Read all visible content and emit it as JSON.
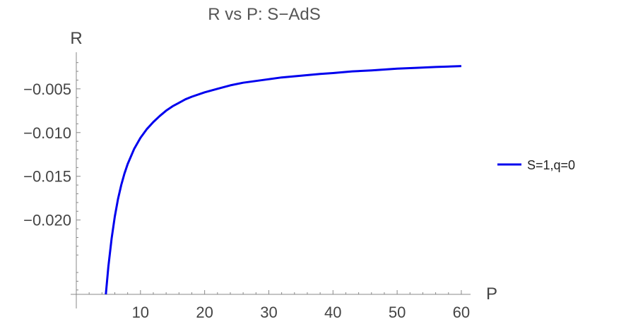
{
  "chart_data": {
    "type": "line",
    "title": "R vs P: S−AdS",
    "xlabel": "P",
    "ylabel": "R",
    "xlim": [
      0,
      61
    ],
    "ylim": [
      -0.0285,
      -0.0013
    ],
    "x_ticks": [
      10,
      20,
      30,
      40,
      50,
      60
    ],
    "x_tick_labels": [
      "10",
      "20",
      "30",
      "40",
      "50",
      "60"
    ],
    "y_ticks": [
      -0.005,
      -0.01,
      -0.015,
      -0.02
    ],
    "y_tick_labels": [
      "−0.005",
      "−0.010",
      "−0.015",
      "−0.020"
    ],
    "grid": false,
    "legend_position": "right",
    "series": [
      {
        "name": "S=1,q=0",
        "color": "#0000ee",
        "x": [
          4.6,
          5,
          5.5,
          6,
          6.5,
          7,
          7.5,
          8,
          9,
          10,
          11,
          12,
          13,
          14,
          15,
          16,
          17,
          18,
          20,
          22,
          24,
          26,
          28,
          30,
          32,
          35,
          38,
          40,
          43,
          46,
          50,
          53,
          56,
          60
        ],
        "y": [
          -0.0285,
          -0.0253,
          -0.0221,
          -0.0196,
          -0.0176,
          -0.016,
          -0.0147,
          -0.0136,
          -0.0119,
          -0.0106,
          -0.0096,
          -0.0088,
          -0.0081,
          -0.0075,
          -0.007,
          -0.0066,
          -0.0062,
          -0.0059,
          -0.0054,
          -0.005,
          -0.0046,
          -0.0043,
          -0.0041,
          -0.0039,
          -0.0037,
          -0.0035,
          -0.0033,
          -0.0032,
          -0.003,
          -0.0029,
          -0.0027,
          -0.0026,
          -0.0025,
          -0.0024
        ]
      }
    ]
  }
}
